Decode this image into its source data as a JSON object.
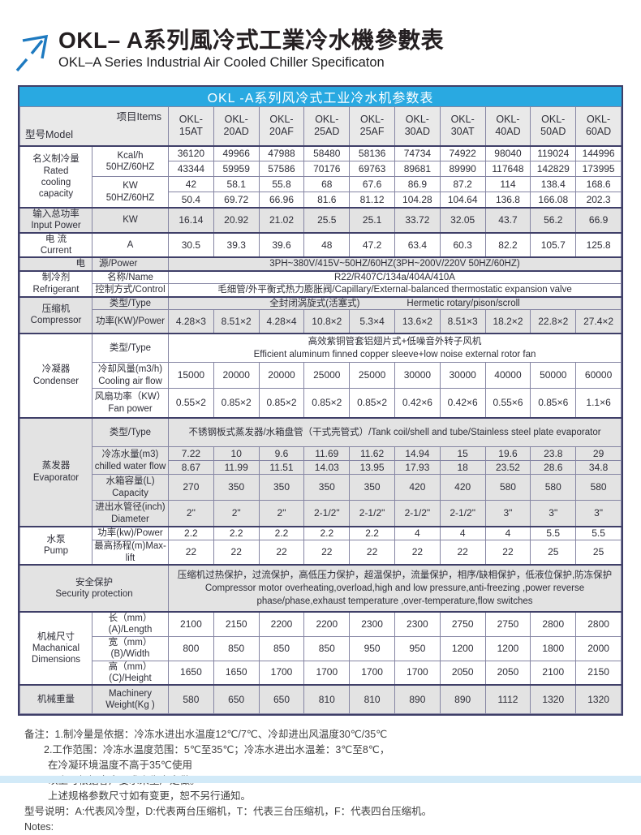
{
  "colors": {
    "banner_blue": "#29a9e1",
    "arrow_blue": "#1e7ac0",
    "section_gray": "#e3e3e3",
    "border_thin": "#8585a3",
    "border_dark": "#3f3f68",
    "strip_blue": "#d2eaf8"
  },
  "header": {
    "title_zh": "OKL– A系列風冷式工業冷水機參數表",
    "title_en": "OKL–A Series Industrial Air Cooled Chiller Specificaton",
    "logo_icon": "arrow-up-right-icon"
  },
  "table": {
    "banner": "OKL -A系列风冷式工业冷水机参数表",
    "corner": {
      "model": "型号Model",
      "items": "项目Items"
    },
    "model_headers": [
      "OKL-\n15AT",
      "OKL-\n20AD",
      "OKL-\n20AF",
      "OKL-\n25AD",
      "OKL-\n25AF",
      "OKL-\n30AD",
      "OKL-\n30AT",
      "OKL-\n40AD",
      "OKL-\n50AD",
      "OKL-\n60AD"
    ],
    "labels": {
      "cooling": "名义制冷量\nRated\ncooling\ncapacity",
      "kcal": "Kcal/h\n50HZ/60HZ",
      "kw": "KW\n50HZ/60HZ",
      "input_power": "输入总功率\nInput Power",
      "input_power_unit": "KW",
      "current": "电 流\nCurrent",
      "current_unit": "A",
      "power_zh": "电",
      "power_en": "源/Power",
      "refrigerant": "制冷剂\nRefrigerant",
      "refrigerant_name": "名称/Name",
      "refrigerant_control": "控制方式/Control",
      "compressor": "压缩机\nCompressor",
      "compressor_type": "类型/Type",
      "compressor_power": "功率(KW)/Power",
      "condenser": "冷凝器\nCondenser",
      "condenser_type": "类型/Type",
      "air_flow": "冷却风量(m3/h)\nCooling air flow",
      "fan_power": "风扇功率（KW）\nFan power",
      "evaporator": "蒸发器\nEvaporator",
      "evaporator_type": "类型/Type",
      "chilled": "冷冻水量(m3)\nchilled water flow",
      "tank": "水箱容量(L)\nCapacity",
      "diameter": "进出水管径(inch)\nDiameter",
      "pump": "水泵\nPump",
      "pump_power": "功率(kw)/Power",
      "max_lift": "最高扬程(m)Max-lift",
      "security": "安全保护\nSecurity protection",
      "dimensions": "机械尺寸\nMachanical\nDimensions",
      "length": "长（mm）(A)/Length",
      "width": "宽（mm）(B)/Width",
      "height": "高（mm）(C)/Height",
      "weight": "机械重量",
      "weight_unit": "Machinery\nWeight(Kg )"
    },
    "values": {
      "kcal_50": [
        "36120",
        "49966",
        "47988",
        "58480",
        "58136",
        "74734",
        "74922",
        "98040",
        "119024",
        "144996"
      ],
      "kcal_60": [
        "43344",
        "59959",
        "57586",
        "70176",
        "69763",
        "89681",
        "89990",
        "117648",
        "142829",
        "173995"
      ],
      "kw_50": [
        "42",
        "58.1",
        "55.8",
        "68",
        "67.6",
        "86.9",
        "87.2",
        "114",
        "138.4",
        "168.6"
      ],
      "kw_60": [
        "50.4",
        "69.72",
        "66.96",
        "81.6",
        "81.12",
        "104.28",
        "104.64",
        "136.8",
        "166.08",
        "202.3"
      ],
      "input_power": [
        "16.14",
        "20.92",
        "21.02",
        "25.5",
        "25.1",
        "33.72",
        "32.05",
        "43.7",
        "56.2",
        "66.9"
      ],
      "current": [
        "30.5",
        "39.3",
        "39.6",
        "48",
        "47.2",
        "63.4",
        "60.3",
        "82.2",
        "105.7",
        "125.8"
      ],
      "power_supply": "3PH~380V/415V~50HZ/60HZ(3PH~200V/220V  50HZ/60HZ)",
      "refrigerant_name": "R22/R407C/134a/404A/410A",
      "refrigerant_control": "毛细管/外平衡式热力膨胀阀/Capillary/External-balanced thermostatic expansion valve",
      "compressor_type_zh": "全封闭涡旋式(活塞式)",
      "compressor_type_en": "Hermetic rotary/pison/scroll",
      "compressor_power": [
        "4.28×3",
        "8.51×2",
        "4.28×4",
        "10.8×2",
        "5.3×4",
        "13.6×2",
        "8.51×3",
        "18.2×2",
        "22.8×2",
        "27.4×2"
      ],
      "condenser_type_zh": "高效紫铜管套铝翅片式+低噪音外转子风机",
      "condenser_type_en": "Efficient aluminum finned copper sleeve+low noise external rotor fan",
      "air_flow": [
        "15000",
        "20000",
        "20000",
        "25000",
        "25000",
        "30000",
        "30000",
        "40000",
        "50000",
        "60000"
      ],
      "fan_power": [
        "0.55×2",
        "0.85×2",
        "0.85×2",
        "0.85×2",
        "0.85×2",
        "0.42×6",
        "0.42×6",
        "0.55×6",
        "0.85×6",
        "1.1×6"
      ],
      "evaporator_type": "不锈钢板式蒸发器/水箱盘管（干式壳管式）/Tank coil/shell and tube/Stainless steel plate evaporator",
      "chilled_50": [
        "7.22",
        "10",
        "9.6",
        "11.69",
        "11.62",
        "14.94",
        "15",
        "19.6",
        "23.8",
        "29"
      ],
      "chilled_60": [
        "8.67",
        "11.99",
        "11.51",
        "14.03",
        "13.95",
        "17.93",
        "18",
        "23.52",
        "28.6",
        "34.8"
      ],
      "tank": [
        "270",
        "350",
        "350",
        "350",
        "350",
        "420",
        "420",
        "580",
        "580",
        "580"
      ],
      "diameter": [
        "2\"",
        "2\"",
        "2\"",
        "2-1/2\"",
        "2-1/2\"",
        "2-1/2\"",
        "2-1/2\"",
        "3\"",
        "3\"",
        "3\""
      ],
      "pump_power": [
        "2.2",
        "2.2",
        "2.2",
        "2.2",
        "2.2",
        "4",
        "4",
        "4",
        "5.5",
        "5.5"
      ],
      "max_lift": [
        "22",
        "22",
        "22",
        "22",
        "22",
        "22",
        "22",
        "22",
        "25",
        "25"
      ],
      "security_zh": "压缩机过热保护，过流保护，高低压力保护，超温保护，流量保护，相序/缺相保护，低液位保护,防冻保护",
      "security_en": "Compressor motor overheating,overload,high and low pressure,anti-freezing ,power reverse phase/phase,exhaust temperature ,over-temperature,flow switches",
      "length": [
        "2100",
        "2150",
        "2200",
        "2200",
        "2300",
        "2300",
        "2750",
        "2750",
        "2800",
        "2800"
      ],
      "width": [
        "800",
        "850",
        "850",
        "850",
        "950",
        "950",
        "1200",
        "1200",
        "1800",
        "2000"
      ],
      "height": [
        "1650",
        "1650",
        "1700",
        "1700",
        "1700",
        "1700",
        "2050",
        "2050",
        "2100",
        "2150"
      ],
      "weight": [
        "580",
        "650",
        "650",
        "810",
        "810",
        "890",
        "890",
        "1112",
        "1320",
        "1320"
      ]
    }
  },
  "notes": [
    "备注：1.制冷量是依据：冷冻水进出水温度12℃/7℃、冷却进出风温度30℃/35℃",
    "2.工作范围：冷冻水温度范围：5℃至35℃；冷冻水进出水温差：3℃至8℃，",
    "在冷凝环境温度不高于35℃使用",
    "以上可根据客户要求来生产定做。",
    "上述规格参数尺寸如有变更，恕不另行通知。",
    "型号说明：A:代表风冷型，D:代表两台压缩机，T：代表三台压缩机，F：代表四台压缩机。",
    "Notes:"
  ]
}
